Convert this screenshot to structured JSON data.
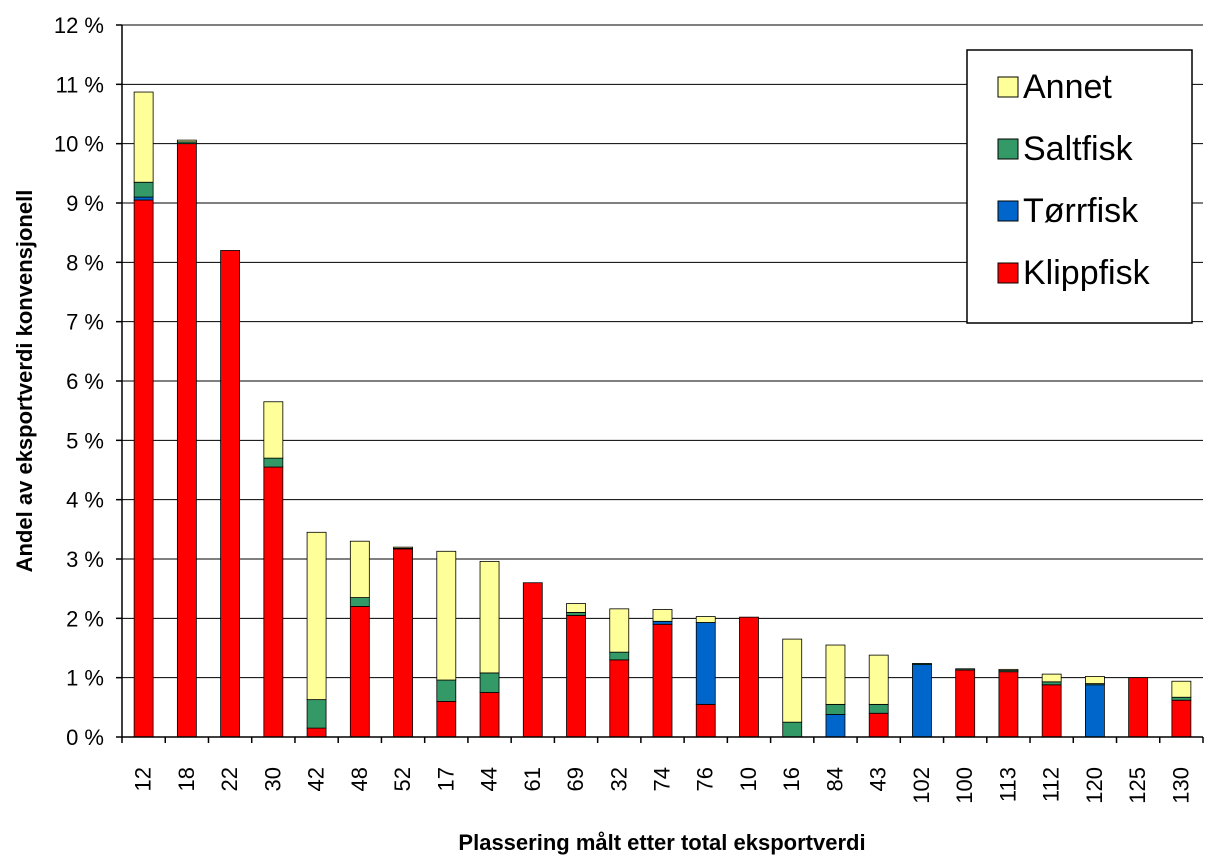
{
  "chart_data": {
    "type": "bar",
    "stacked": true,
    "title": "",
    "xlabel": "Plassering målt etter total eksportverdi",
    "ylabel": "Andel av eksportverdi konvensjonell",
    "ylim": [
      0,
      12
    ],
    "yticks": [
      "0 %",
      "1 %",
      "2 %",
      "3 %",
      "4 %",
      "5 %",
      "6 %",
      "7 %",
      "8 %",
      "9 %",
      "10 %",
      "11 %",
      "12 %"
    ],
    "grid": true,
    "legend_position": "top-right",
    "categories": [
      "12",
      "18",
      "22",
      "30",
      "42",
      "48",
      "52",
      "17",
      "44",
      "61",
      "69",
      "32",
      "74",
      "76",
      "10",
      "16",
      "84",
      "43",
      "102",
      "100",
      "113",
      "112",
      "120",
      "125",
      "130"
    ],
    "series": [
      {
        "name": "Klippfisk",
        "color": "#ff0000",
        "values": [
          9.05,
          10.0,
          8.2,
          4.55,
          0.15,
          2.2,
          3.17,
          0.6,
          0.75,
          2.6,
          2.05,
          1.3,
          1.9,
          0.55,
          2.02,
          0.0,
          0.0,
          0.4,
          0.0,
          1.13,
          1.1,
          0.88,
          0.0,
          1.0,
          0.62
        ]
      },
      {
        "name": "Tørrfisk",
        "color": "#0066cc",
        "values": [
          0.05,
          0.0,
          0.0,
          0.0,
          0.0,
          0.0,
          0.0,
          0.0,
          0.0,
          0.0,
          0.0,
          0.0,
          0.05,
          1.38,
          0.0,
          0.0,
          0.38,
          0.0,
          1.22,
          0.0,
          0.0,
          0.0,
          0.88,
          0.0,
          0.0
        ]
      },
      {
        "name": "Saltfisk",
        "color": "#339966",
        "values": [
          0.25,
          0.03,
          0.0,
          0.15,
          0.48,
          0.15,
          0.01,
          0.36,
          0.33,
          0.0,
          0.05,
          0.13,
          0.0,
          0.0,
          0.0,
          0.25,
          0.17,
          0.15,
          0.02,
          0.02,
          0.02,
          0.05,
          0.02,
          0.0,
          0.05
        ]
      },
      {
        "name": "Annet",
        "color": "#ffff99",
        "values": [
          1.52,
          0.03,
          0.0,
          0.95,
          2.82,
          0.95,
          0.02,
          2.17,
          1.88,
          0.0,
          0.15,
          0.73,
          0.2,
          0.1,
          0.0,
          1.4,
          1.0,
          0.83,
          0.0,
          0.0,
          0.02,
          0.13,
          0.12,
          0.0,
          0.27
        ]
      }
    ],
    "legend_order": [
      "Annet",
      "Saltfisk",
      "Tørrfisk",
      "Klippfisk"
    ]
  }
}
